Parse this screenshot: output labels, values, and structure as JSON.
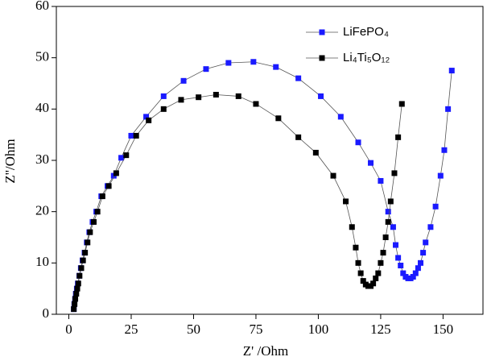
{
  "chart_data": {
    "type": "scatter-line",
    "x_label": "Z' /Ohm",
    "y_label": "Z''/Ohm",
    "xlim": [
      -5,
      166
    ],
    "ylim": [
      0,
      60
    ],
    "xticks": [
      0,
      25,
      50,
      75,
      100,
      125,
      150
    ],
    "yticks": [
      0,
      10,
      20,
      30,
      40,
      50,
      60
    ],
    "legend": "top-right",
    "series": [
      {
        "name": "LiFePO₄",
        "color": "#1a1aff",
        "x": [
          2,
          2.2,
          2.5,
          2.8,
          3.2,
          3.6,
          4.2,
          4.8,
          5.5,
          6.3,
          7.2,
          8.2,
          9.5,
          11,
          13,
          15.5,
          18,
          21,
          25,
          31,
          38,
          46,
          55,
          64,
          74,
          83,
          92,
          101,
          109,
          116,
          121,
          125,
          128,
          130,
          131,
          132,
          133,
          134,
          135,
          136,
          137,
          138,
          139,
          140,
          141,
          142,
          143,
          145,
          147,
          149,
          150.5,
          152,
          153.5
        ],
        "values": [
          1,
          2,
          3,
          4,
          5,
          6,
          7.5,
          9,
          10.5,
          12,
          14,
          16,
          18,
          20,
          23,
          25,
          27,
          30.5,
          34.8,
          38.5,
          42.5,
          45.5,
          47.8,
          49,
          49.2,
          48.2,
          46,
          42.5,
          38.5,
          33.5,
          29.5,
          26,
          20,
          17,
          13.5,
          11,
          9.5,
          8,
          7.3,
          7,
          7,
          7.3,
          8,
          9,
          10,
          12,
          14,
          17,
          21,
          27,
          32,
          40,
          47.5
        ]
      },
      {
        "name": "Li₄Ti₅O₁₂",
        "color": "#000000",
        "x": [
          2,
          2.3,
          2.6,
          3,
          3.4,
          3.8,
          4.3,
          5,
          5.7,
          6.5,
          7.5,
          8.5,
          10,
          11.5,
          13.5,
          16,
          19,
          23,
          27,
          32,
          38,
          45,
          52,
          59,
          68,
          75,
          84,
          92,
          99,
          106,
          111,
          113.5,
          115,
          116,
          117,
          118,
          119,
          120,
          121,
          122,
          123,
          124,
          125,
          126,
          127,
          128,
          129,
          130.5,
          132,
          133.5
        ],
        "values": [
          1,
          2,
          3,
          4,
          5,
          6,
          7.5,
          9,
          10.5,
          12,
          14,
          16,
          18,
          20,
          23,
          25,
          27.5,
          31,
          34.8,
          37.8,
          40,
          41.8,
          42.3,
          42.8,
          42.5,
          41,
          38.2,
          34.5,
          31.5,
          27,
          22,
          17,
          13,
          10,
          8,
          6.5,
          5.8,
          5.5,
          5.5,
          6,
          7,
          8,
          10,
          12,
          15,
          18,
          22,
          27.5,
          34.5,
          41
        ]
      }
    ]
  }
}
